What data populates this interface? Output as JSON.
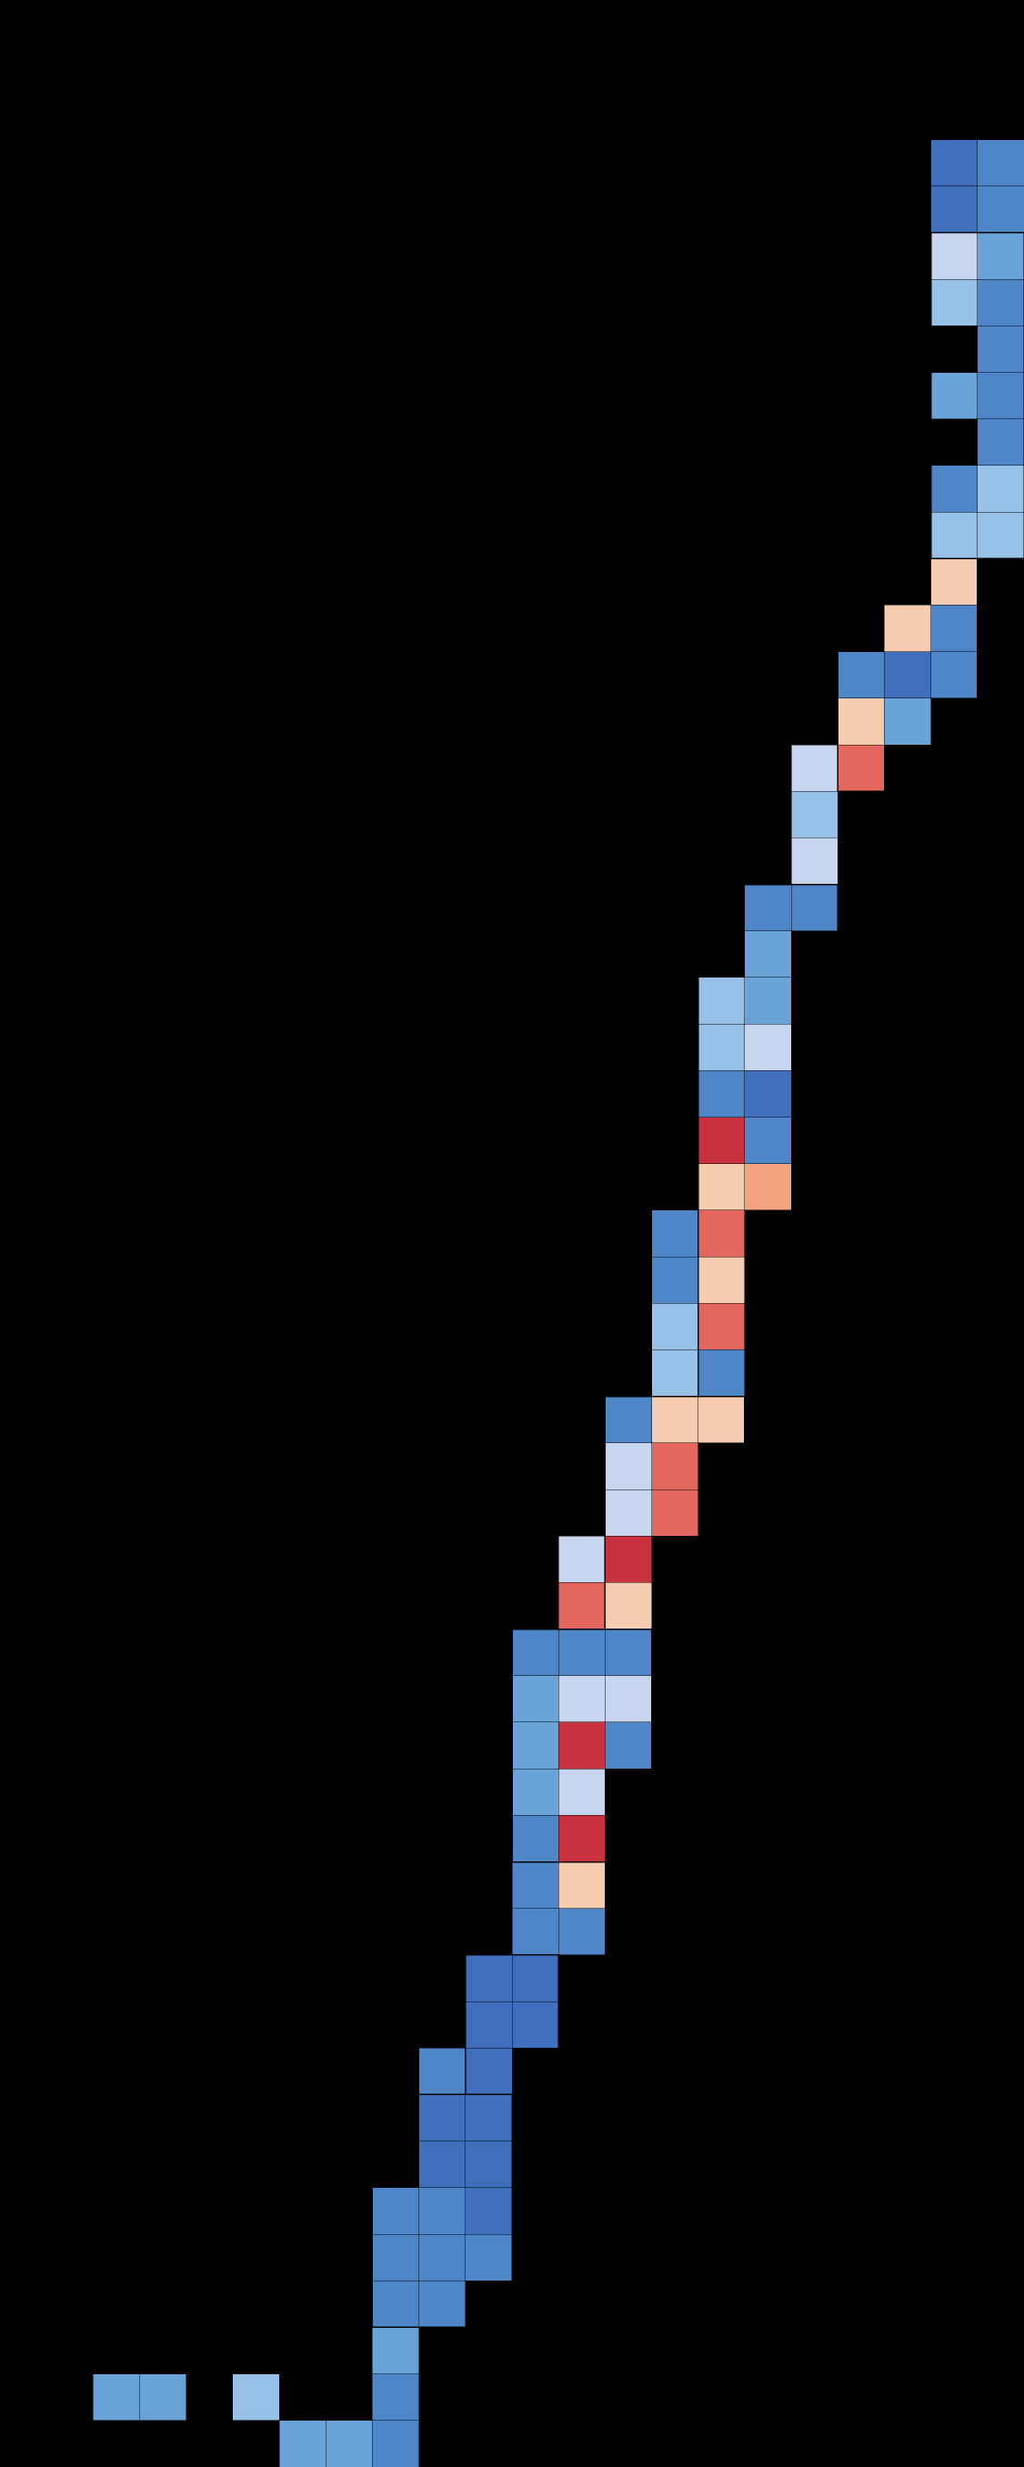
{
  "map": {
    "type": "grid-tile-choropleth",
    "background": "#000000",
    "labels_shown": false,
    "legend_shown": false,
    "palette": {
      "1": "#3f6fbd",
      "2": "#4f86c8",
      "3": "#6aa3d8",
      "4": "#97c1e6",
      "5": "#c7d6ee",
      "6": "#f6cdb0",
      "7": "#f2a480",
      "8": "#e4675f",
      "9": "#c9313f"
    },
    "grid": {
      "cols": 22,
      "rows": 53,
      "cells": [
        [
          20,
          3,
          1
        ],
        [
          21,
          3,
          2
        ],
        [
          20,
          4,
          1
        ],
        [
          21,
          4,
          2
        ],
        [
          20,
          5,
          5
        ],
        [
          21,
          5,
          3
        ],
        [
          20,
          6,
          4
        ],
        [
          21,
          6,
          2
        ],
        [
          21,
          7,
          2
        ],
        [
          20,
          8,
          3
        ],
        [
          21,
          8,
          2
        ],
        [
          21,
          9,
          2
        ],
        [
          20,
          10,
          2
        ],
        [
          21,
          10,
          4
        ],
        [
          20,
          11,
          4
        ],
        [
          21,
          11,
          4
        ],
        [
          20,
          12,
          6
        ],
        [
          19,
          13,
          6
        ],
        [
          20,
          13,
          2
        ],
        [
          18,
          14,
          2
        ],
        [
          19,
          14,
          1
        ],
        [
          20,
          14,
          2
        ],
        [
          18,
          15,
          6
        ],
        [
          19,
          15,
          3
        ],
        [
          17,
          16,
          5
        ],
        [
          18,
          16,
          8
        ],
        [
          17,
          17,
          4
        ],
        [
          17,
          18,
          5
        ],
        [
          16,
          19,
          2
        ],
        [
          17,
          19,
          2
        ],
        [
          16,
          20,
          3
        ],
        [
          15,
          21,
          4
        ],
        [
          16,
          21,
          3
        ],
        [
          15,
          22,
          4
        ],
        [
          16,
          22,
          5
        ],
        [
          15,
          23,
          2
        ],
        [
          16,
          23,
          1
        ],
        [
          15,
          24,
          9
        ],
        [
          16,
          24,
          2
        ],
        [
          15,
          25,
          6
        ],
        [
          16,
          25,
          7
        ],
        [
          14,
          26,
          2
        ],
        [
          15,
          26,
          8
        ],
        [
          14,
          27,
          2
        ],
        [
          15,
          27,
          6
        ],
        [
          14,
          28,
          4
        ],
        [
          15,
          28,
          8
        ],
        [
          14,
          29,
          4
        ],
        [
          15,
          29,
          2
        ],
        [
          13,
          30,
          2
        ],
        [
          14,
          30,
          6
        ],
        [
          15,
          30,
          6
        ],
        [
          13,
          31,
          5
        ],
        [
          14,
          31,
          8
        ],
        [
          13,
          32,
          5
        ],
        [
          14,
          32,
          8
        ],
        [
          12,
          33,
          5
        ],
        [
          13,
          33,
          9
        ],
        [
          12,
          34,
          8
        ],
        [
          13,
          34,
          6
        ],
        [
          11,
          35,
          2
        ],
        [
          12,
          35,
          2
        ],
        [
          13,
          35,
          2
        ],
        [
          11,
          36,
          3
        ],
        [
          12,
          36,
          5
        ],
        [
          13,
          36,
          5
        ],
        [
          11,
          37,
          3
        ],
        [
          12,
          37,
          9
        ],
        [
          13,
          37,
          2
        ],
        [
          11,
          38,
          3
        ],
        [
          12,
          38,
          5
        ],
        [
          11,
          39,
          2
        ],
        [
          12,
          39,
          9
        ],
        [
          11,
          40,
          2
        ],
        [
          12,
          40,
          6
        ],
        [
          11,
          41,
          2
        ],
        [
          12,
          41,
          2
        ],
        [
          10,
          42,
          1
        ],
        [
          11,
          42,
          1
        ],
        [
          10,
          43,
          1
        ],
        [
          11,
          43,
          1
        ],
        [
          9,
          44,
          2
        ],
        [
          10,
          44,
          1
        ],
        [
          9,
          45,
          1
        ],
        [
          10,
          45,
          1
        ],
        [
          9,
          46,
          1
        ],
        [
          10,
          46,
          1
        ],
        [
          8,
          47,
          2
        ],
        [
          9,
          47,
          2
        ],
        [
          10,
          47,
          1
        ],
        [
          8,
          48,
          2
        ],
        [
          9,
          48,
          2
        ],
        [
          10,
          48,
          2
        ],
        [
          8,
          49,
          2
        ],
        [
          9,
          49,
          2
        ],
        [
          8,
          50,
          3
        ],
        [
          2,
          51,
          3
        ],
        [
          3,
          51,
          3
        ],
        [
          5,
          51,
          4
        ],
        [
          8,
          51,
          2
        ],
        [
          6,
          52,
          3
        ],
        [
          7,
          52,
          3
        ],
        [
          8,
          52,
          2
        ]
      ]
    },
    "boundaries": [
      {
        "col": 20,
        "row": 5,
        "w": 2,
        "h": 7
      },
      {
        "col": 18,
        "row": 12,
        "w": 3,
        "h": 5
      },
      {
        "col": 15,
        "row": 19,
        "w": 3,
        "h": 11
      },
      {
        "col": 13,
        "row": 30,
        "w": 3,
        "h": 5
      },
      {
        "col": 11,
        "row": 35,
        "w": 3,
        "h": 5
      },
      {
        "col": 10,
        "row": 42,
        "w": 2,
        "h": 3
      },
      {
        "col": 8,
        "row": 45,
        "w": 3,
        "h": 5
      }
    ]
  }
}
